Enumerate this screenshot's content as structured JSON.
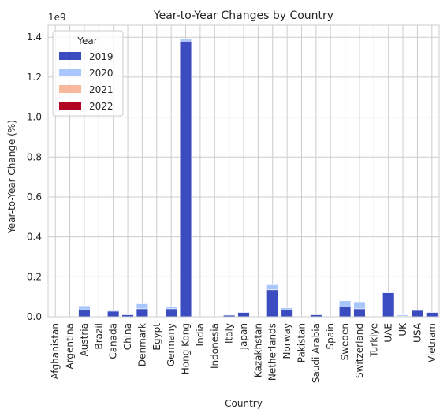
{
  "chart_data": {
    "type": "bar",
    "stacked": true,
    "title": "Year-to-Year Changes by Country",
    "xlabel": "Country",
    "ylabel": "Year-to-Year Change (%)",
    "y_multiplier_label": "1e9",
    "ylim": [
      0,
      1.46
    ],
    "y_unit_scale": 1000000000,
    "yticks": [
      0.0,
      0.2,
      0.4,
      0.6,
      0.8,
      1.0,
      1.2,
      1.4
    ],
    "ytick_labels": [
      "0.0",
      "0.2",
      "0.4",
      "0.6",
      "0.8",
      "1.0",
      "1.2",
      "1.4"
    ],
    "grid": true,
    "legend": {
      "title": "Year",
      "position": "top-left"
    },
    "categories": [
      "Afghanistan",
      "Argentina",
      "Austria",
      "Brazil",
      "Canada",
      "China",
      "Denmark",
      "Egypt",
      "Germany",
      "Hong Kong",
      "India",
      "Indonesia",
      "Italy",
      "Japan",
      "Kazakhstan",
      "Netherlands",
      "Norway",
      "Pakistan",
      "Saudi Arabia",
      "Spain",
      "Sweden",
      "Switzerland",
      "Turkiye",
      "UAE",
      "UK",
      "USA",
      "Vietnam"
    ],
    "series": [
      {
        "name": "2019",
        "color": "#3b4cc0",
        "values": [
          0.0,
          0.0,
          0.035,
          0.0,
          0.028,
          0.01,
          0.04,
          0.0,
          0.04,
          1.38,
          0.0,
          0.0,
          0.008,
          0.022,
          0.0,
          0.135,
          0.035,
          0.0,
          0.01,
          0.0,
          0.05,
          0.04,
          0.0,
          0.12,
          0.003,
          0.032,
          0.022
        ]
      },
      {
        "name": "2020",
        "color": "#aac7fd",
        "values": [
          0.0,
          0.0,
          0.02,
          0.0,
          0.004,
          0.003,
          0.025,
          0.0,
          0.01,
          0.01,
          0.0,
          0.0,
          0.003,
          0.002,
          0.0,
          0.025,
          0.01,
          0.0,
          0.003,
          0.0,
          0.03,
          0.035,
          0.0,
          0.003,
          0.006,
          0.002,
          0.002
        ]
      },
      {
        "name": "2021",
        "color": "#f7b89c",
        "values": [
          0,
          0,
          0,
          0,
          0,
          0,
          0,
          0,
          0,
          0,
          0,
          0,
          0,
          0,
          0,
          0,
          0,
          0,
          0,
          0,
          0,
          0,
          0,
          0,
          0,
          0,
          0
        ]
      },
      {
        "name": "2022",
        "color": "#b40426",
        "values": [
          0,
          0,
          0,
          0,
          0,
          0,
          0,
          0,
          0,
          0,
          0,
          0,
          0,
          0,
          0,
          0,
          0,
          0,
          0,
          0,
          0,
          0,
          0,
          0,
          0,
          0,
          0
        ]
      }
    ]
  }
}
